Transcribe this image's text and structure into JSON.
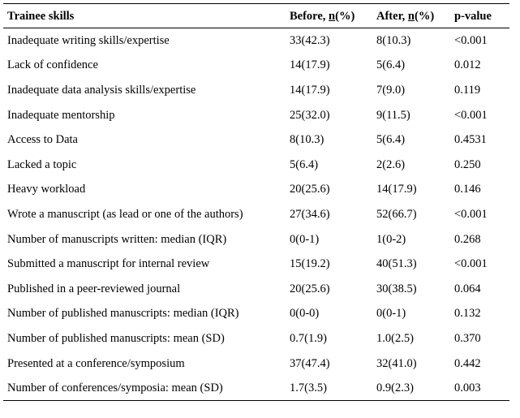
{
  "table": {
    "headers": {
      "skill": "Trainee skills",
      "before_prefix": "Before, ",
      "before_n": "n",
      "before_suffix": "(%)",
      "after_prefix": "After, ",
      "after_n": "n",
      "after_suffix": "(%)",
      "pvalue": "p-value"
    },
    "rows": [
      {
        "skill": "Inadequate writing skills/expertise",
        "before": "33(42.3)",
        "after": "8(10.3)",
        "p": "<0.001"
      },
      {
        "skill": "Lack of confidence",
        "before": "14(17.9)",
        "after": "5(6.4)",
        "p": "0.012"
      },
      {
        "skill": "Inadequate data analysis skills/expertise",
        "before": "14(17.9)",
        "after": "7(9.0)",
        "p": "0.119"
      },
      {
        "skill": "Inadequate mentorship",
        "before": "25(32.0)",
        "after": "9(11.5)",
        "p": "<0.001"
      },
      {
        "skill": "Access to Data",
        "before": "8(10.3)",
        "after": "5(6.4)",
        "p": "0.4531"
      },
      {
        "skill": "Lacked a topic",
        "before": "5(6.4)",
        "after": "2(2.6)",
        "p": "0.250"
      },
      {
        "skill": "Heavy workload",
        "before": "20(25.6)",
        "after": "14(17.9)",
        "p": "0.146"
      },
      {
        "skill": "Wrote a manuscript (as lead or one of the authors)",
        "before": "27(34.6)",
        "after": "52(66.7)",
        "p": "<0.001"
      },
      {
        "skill": "Number of manuscripts written: median (IQR)",
        "before": "0(0-1)",
        "after": "1(0-2)",
        "p": "0.268"
      },
      {
        "skill": "Submitted a manuscript for internal review",
        "before": "15(19.2)",
        "after": "40(51.3)",
        "p": "<0.001"
      },
      {
        "skill": "Published in a peer-reviewed journal",
        "before": "20(25.6)",
        "after": "30(38.5)",
        "p": "0.064"
      },
      {
        "skill": "Number of published manuscripts: median (IQR)",
        "before": "0(0-0)",
        "after": "0(0-1)",
        "p": "0.132"
      },
      {
        "skill": "Number of published manuscripts: mean (SD)",
        "before": "0.7(1.9)",
        "after": "1.0(2.5)",
        "p": "0.370"
      },
      {
        "skill": "Presented at a conference/symposium",
        "before": "37(47.4)",
        "after": "32(41.0)",
        "p": "0.442"
      },
      {
        "skill": "Number of conferences/symposia: mean (SD)",
        "before": "1.7(3.5)",
        "after": "0.9(2.3)",
        "p": "0.003"
      }
    ]
  }
}
